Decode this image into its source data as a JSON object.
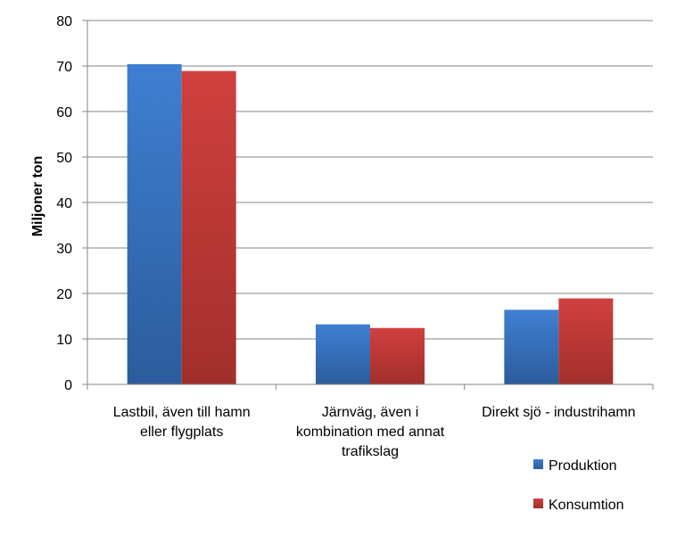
{
  "chart_data": {
    "type": "bar",
    "title": "",
    "xlabel": "",
    "ylabel": "Miljoner ton",
    "ylim": [
      0,
      80
    ],
    "yticks": [
      "0",
      "10",
      "20",
      "30",
      "40",
      "50",
      "60",
      "70",
      "80"
    ],
    "grid": true,
    "legend_position": "bottom-right",
    "categories": [
      [
        "Lastbil, även till hamn",
        "eller flygplats"
      ],
      [
        "Järnväg, även i",
        "kombination med annat",
        "trafikslag"
      ],
      [
        "Direkt sjö - industrihamn"
      ]
    ],
    "series": [
      {
        "name": "Produktion",
        "color": "#4a7ebb",
        "values": [
          70.4,
          13.2,
          16.4
        ]
      },
      {
        "name": "Konsumtion",
        "color": "#be4b48",
        "values": [
          68.9,
          12.4,
          18.9
        ]
      }
    ]
  }
}
